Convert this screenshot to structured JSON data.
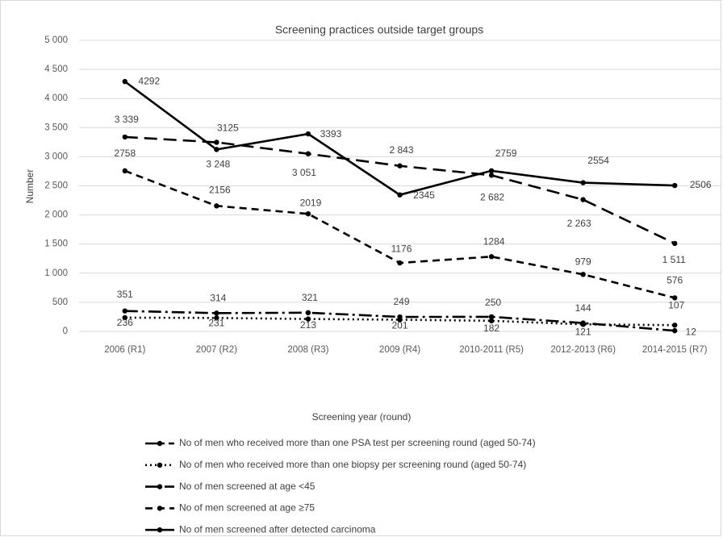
{
  "chart_data": {
    "type": "line",
    "title": "Screening practices outside target groups",
    "x_label": "Screening year (round)",
    "y_label": "Number",
    "categories": [
      "2006 (R1)",
      "2007 (R2)",
      "2008 (R3)",
      "2009 (R4)",
      "2010-2011 (R5)",
      "2012-2013 (R6)",
      "2014-2015 (R7)"
    ],
    "series": [
      {
        "name": "No of men who received more than one PSA test per screening round (aged 50-74)",
        "color": "#000000",
        "line_style": "long-dash-dot",
        "values": [
          351,
          314,
          321,
          249,
          250,
          144,
          12
        ]
      },
      {
        "name": "No of men who received more than one biopsy per screening round (aged 50-74)",
        "color": "#000000",
        "line_style": "dotted",
        "values": [
          236,
          231,
          213,
          201,
          182,
          121,
          107
        ]
      },
      {
        "name": "No of men screened at age <45",
        "color": "#000000",
        "line_style": "long-dash",
        "values": [
          3339,
          3248,
          3051,
          2843,
          2682,
          2263,
          1511
        ],
        "value_labels": [
          "3 339",
          "3 248",
          "3 051",
          "2 843",
          "2 682",
          "2 263",
          "1 511"
        ]
      },
      {
        "name": "No of men screened at age ≥75",
        "color": "#000000",
        "line_style": "dashed",
        "values": [
          2758,
          2156,
          2019,
          1176,
          1284,
          979,
          576
        ]
      },
      {
        "name": "No of men screened after detected carcinoma",
        "color": "#000000",
        "line_style": "solid",
        "values": [
          4292,
          3125,
          3393,
          2345,
          2759,
          2554,
          2506
        ]
      }
    ],
    "ylim": [
      0,
      5000
    ],
    "yticks": [
      0,
      500,
      {
        "value": 1000,
        "label": "1 000"
      },
      {
        "value": 1500,
        "label": "1 500"
      },
      {
        "value": 2000,
        "label": "2 000"
      },
      {
        "value": 2500,
        "label": "2 500"
      },
      {
        "value": 3000,
        "label": "3 000"
      },
      {
        "value": 3500,
        "label": "3 500"
      },
      {
        "value": 4000,
        "label": "4 000"
      },
      {
        "value": 4500,
        "label": "4 500"
      },
      {
        "value": 5000,
        "label": "5 000"
      }
    ],
    "grid": true,
    "legend": "bottom"
  }
}
